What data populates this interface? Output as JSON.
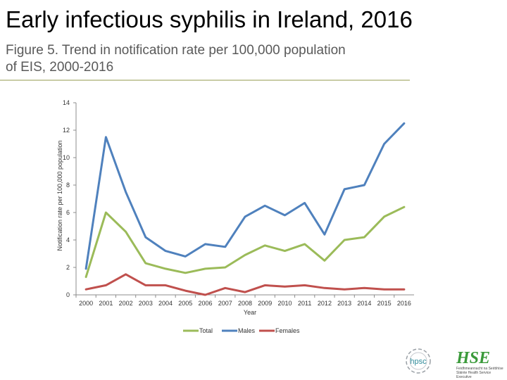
{
  "slide": {
    "title": "Early infectious syphilis in Ireland, 2016",
    "subtitle_line1": "Figure 5. Trend in notification rate per 100,000 population",
    "subtitle_line2": "of EIS, 2000-2016"
  },
  "chart_data": {
    "type": "line",
    "title": "",
    "xlabel": "Year",
    "ylabel": "Notification rate per 100,000 population",
    "categories": [
      "2000",
      "2001",
      "2002",
      "2003",
      "2004",
      "2005",
      "2006",
      "2007",
      "2008",
      "2009",
      "2010",
      "2011",
      "2012",
      "2013",
      "2014",
      "2015",
      "2016"
    ],
    "ylim": [
      0,
      14
    ],
    "yticks": [
      0,
      2,
      4,
      6,
      8,
      10,
      12,
      14
    ],
    "grid": false,
    "legend_position": "bottom",
    "series": [
      {
        "name": "Total",
        "color": "#9bbb59",
        "values": [
          1.3,
          6.0,
          4.6,
          2.3,
          1.9,
          1.6,
          1.9,
          2.0,
          2.9,
          3.6,
          3.2,
          3.7,
          2.5,
          4.0,
          4.2,
          5.7,
          6.4
        ]
      },
      {
        "name": "Males",
        "color": "#4f81bd",
        "values": [
          1.9,
          11.5,
          7.5,
          4.2,
          3.2,
          2.8,
          3.7,
          3.5,
          5.7,
          6.5,
          5.8,
          6.7,
          4.4,
          7.7,
          8.0,
          11.0,
          12.5
        ]
      },
      {
        "name": "Females",
        "color": "#c0504d",
        "values": [
          0.4,
          0.7,
          1.5,
          0.7,
          0.7,
          0.3,
          0.0,
          0.5,
          0.2,
          0.7,
          0.6,
          0.7,
          0.5,
          0.4,
          0.5,
          0.4,
          0.4
        ]
      }
    ]
  },
  "logos": {
    "hpsc_text": "hpsc",
    "hse_text": "HSE",
    "hse_caption": "Feidhmeannacht na Seirbhíse Sláinte Health Service Executive",
    "hpsc_color": "#2e8b9a",
    "hse_green": "#3a9a3a",
    "hse_blue": "#1f5aa8"
  }
}
